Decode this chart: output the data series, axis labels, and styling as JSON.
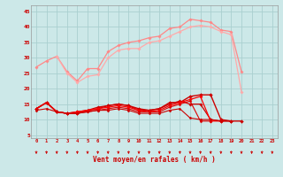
{
  "x": [
    0,
    1,
    2,
    3,
    4,
    5,
    6,
    7,
    8,
    9,
    10,
    11,
    12,
    13,
    14,
    15,
    16,
    17,
    18,
    19,
    20,
    21,
    22,
    23
  ],
  "series": [
    {
      "name": "rafales_max_top",
      "color": "#ff8888",
      "lw": 0.9,
      "marker": "D",
      "ms": 1.8,
      "y": [
        27.0,
        29.0,
        30.5,
        25.5,
        22.5,
        26.5,
        26.5,
        32.0,
        34.0,
        35.0,
        35.5,
        36.5,
        37.0,
        39.5,
        40.0,
        42.5,
        42.0,
        41.5,
        39.0,
        38.5,
        25.5,
        null,
        null,
        null
      ]
    },
    {
      "name": "rafales_max_bot",
      "color": "#ffaaaa",
      "lw": 0.9,
      "marker": "D",
      "ms": 1.8,
      "y": [
        null,
        null,
        30.5,
        25.0,
        22.0,
        24.0,
        24.5,
        30.0,
        32.5,
        33.0,
        33.0,
        35.0,
        35.5,
        37.0,
        38.5,
        40.0,
        40.5,
        40.0,
        38.5,
        37.5,
        19.0,
        null,
        null,
        null
      ]
    },
    {
      "name": "vent_moyen_line1",
      "color": "#cc0000",
      "lw": 1.0,
      "marker": "D",
      "ms": 2.0,
      "y": [
        13.5,
        15.5,
        12.5,
        12.0,
        12.0,
        13.0,
        13.5,
        14.5,
        15.0,
        14.5,
        13.5,
        13.0,
        13.5,
        15.5,
        15.5,
        17.5,
        18.0,
        18.0,
        10.0,
        9.5,
        9.5,
        null,
        null,
        null
      ]
    },
    {
      "name": "vent_moyen_line2",
      "color": "#cc0000",
      "lw": 0.9,
      "marker": "D",
      "ms": 1.8,
      "y": [
        13.5,
        15.5,
        12.5,
        12.0,
        12.5,
        13.0,
        14.0,
        14.5,
        15.0,
        14.5,
        13.0,
        13.0,
        13.5,
        15.0,
        16.0,
        15.0,
        15.0,
        10.0,
        9.5,
        9.5,
        null,
        null,
        null,
        null
      ]
    },
    {
      "name": "vent_moyen_line3",
      "color": "#ff0000",
      "lw": 0.9,
      "marker": "D",
      "ms": 1.8,
      "y": [
        13.5,
        15.5,
        12.5,
        12.0,
        12.5,
        13.0,
        13.5,
        14.0,
        14.5,
        14.0,
        13.0,
        12.5,
        13.0,
        14.5,
        15.5,
        16.5,
        17.5,
        9.5,
        9.5,
        null,
        null,
        null,
        null,
        null
      ]
    },
    {
      "name": "vent_moyen_line4",
      "color": "#dd0000",
      "lw": 0.8,
      "marker": "D",
      "ms": 1.6,
      "y": [
        13.5,
        15.5,
        12.5,
        12.0,
        12.0,
        12.5,
        13.0,
        13.5,
        14.0,
        13.5,
        12.5,
        12.5,
        12.5,
        14.0,
        15.0,
        16.0,
        9.5,
        9.5,
        null,
        null,
        null,
        null,
        null,
        null
      ]
    },
    {
      "name": "vent_moyen_flat",
      "color": "#cc0000",
      "lw": 0.8,
      "marker": "D",
      "ms": 1.6,
      "y": [
        13.0,
        13.5,
        12.5,
        12.0,
        12.0,
        12.5,
        13.0,
        13.0,
        13.5,
        13.0,
        12.0,
        12.0,
        12.0,
        13.0,
        13.5,
        10.5,
        10.0,
        10.0,
        9.5,
        9.5,
        null,
        null,
        null,
        null
      ]
    }
  ],
  "xlabel": "Vent moyen/en rafales ( km/h )",
  "xticks": [
    0,
    1,
    2,
    3,
    4,
    5,
    6,
    7,
    8,
    9,
    10,
    11,
    12,
    13,
    14,
    15,
    16,
    17,
    18,
    19,
    20,
    21,
    22,
    23
  ],
  "yticks": [
    5,
    10,
    15,
    20,
    25,
    30,
    35,
    40,
    45
  ],
  "ylim": [
    4,
    47
  ],
  "xlim": [
    -0.5,
    23.5
  ],
  "bg_color": "#cce8e8",
  "grid_color": "#aad0d0",
  "label_color": "#cc0000",
  "arrow_color": "#cc0000"
}
